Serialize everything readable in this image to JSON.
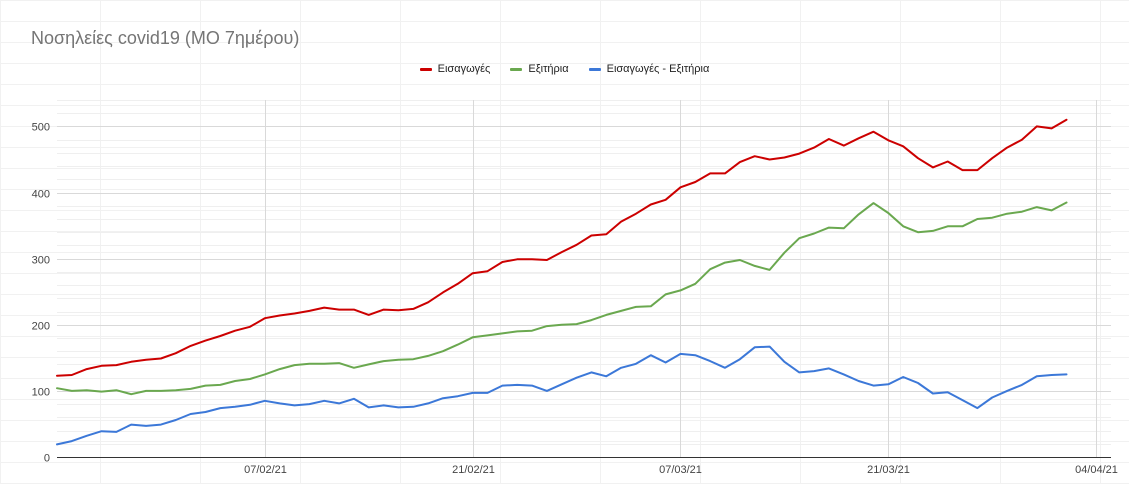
{
  "chart_data": {
    "type": "line",
    "title": "Νοσηλείες covid19 (ΜΟ 7ημέρου)",
    "xlabel": "",
    "ylabel": "",
    "ylim": [
      0,
      540
    ],
    "yticks": [
      0,
      100,
      200,
      300,
      400,
      500
    ],
    "x_range": [
      "2021-01-24",
      "2021-04-05"
    ],
    "xticks": [
      {
        "date": "2021-02-07",
        "label": "07/02/21"
      },
      {
        "date": "2021-02-21",
        "label": "21/02/21"
      },
      {
        "date": "2021-03-07",
        "label": "07/03/21"
      },
      {
        "date": "2021-03-21",
        "label": "21/03/21"
      },
      {
        "date": "2021-04-04",
        "label": "04/04/21"
      }
    ],
    "grid": true,
    "legend_position": "top",
    "start_date": "2021-01-24",
    "series": [
      {
        "name": "Εισαγωγές",
        "color": "#cc0000",
        "values": [
          123,
          124,
          133,
          138,
          139,
          144,
          147,
          149,
          157,
          168,
          176,
          183,
          191,
          197,
          210,
          214,
          217,
          221,
          226,
          223,
          223,
          215,
          223,
          222,
          224,
          234,
          249,
          262,
          278,
          281,
          295,
          299,
          299,
          298,
          310,
          321,
          335,
          337,
          356,
          368,
          382,
          389,
          408,
          416,
          429,
          429,
          446,
          455,
          450,
          453,
          459,
          468,
          481,
          471,
          482,
          492,
          479,
          470,
          452,
          438,
          447,
          434,
          434,
          452,
          468,
          480,
          500,
          497,
          510
        ]
      },
      {
        "name": "Εξιτήρια",
        "color": "#6aa84f",
        "values": [
          104,
          100,
          101,
          99,
          101,
          95,
          100,
          100,
          101,
          103,
          108,
          109,
          115,
          118,
          125,
          133,
          139,
          141,
          141,
          142,
          135,
          140,
          145,
          147,
          148,
          153,
          160,
          170,
          181,
          184,
          187,
          190,
          191,
          198,
          200,
          201,
          207,
          215,
          221,
          227,
          228,
          246,
          252,
          262,
          284,
          294,
          298,
          289,
          283,
          309,
          331,
          338,
          347,
          346,
          367,
          384,
          369,
          349,
          340,
          342,
          349,
          349,
          360,
          362,
          368,
          371,
          378,
          373,
          385
        ]
      },
      {
        "name": "Εισαγωγές - Εξιτήρια",
        "color": "#3c78d8",
        "values": [
          19,
          24,
          32,
          39,
          38,
          49,
          47,
          49,
          56,
          65,
          68,
          74,
          76,
          79,
          85,
          81,
          78,
          80,
          85,
          81,
          88,
          75,
          78,
          75,
          76,
          81,
          89,
          92,
          97,
          97,
          108,
          109,
          108,
          100,
          110,
          120,
          128,
          122,
          135,
          141,
          154,
          143,
          156,
          154,
          145,
          135,
          148,
          166,
          167,
          144,
          128,
          130,
          134,
          125,
          115,
          108,
          110,
          121,
          112,
          96,
          98,
          86,
          74,
          90,
          100,
          109,
          122,
          124,
          125
        ]
      }
    ]
  }
}
